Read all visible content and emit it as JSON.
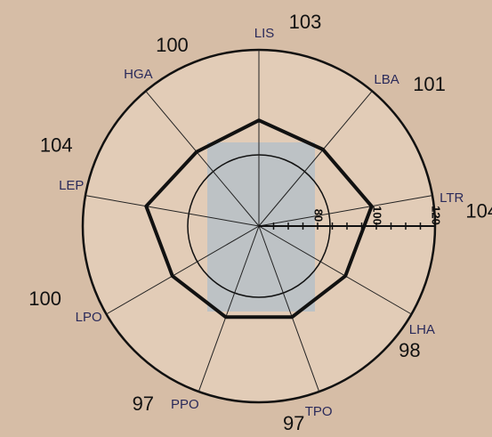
{
  "chart_data": {
    "type": "radar",
    "radial_range": [
      60,
      120
    ],
    "radial_ticks": [
      80,
      100,
      120
    ],
    "axes": [
      {
        "label": "LEP",
        "value": 104
      },
      {
        "label": "HGA",
        "value": 100
      },
      {
        "label": "LIS",
        "value": 103
      },
      {
        "label": "LBA",
        "value": 101
      },
      {
        "label": "LTR",
        "value": 104
      },
      {
        "label": "LHA",
        "value": 98
      },
      {
        "label": "TPO",
        "value": 97
      },
      {
        "label": "PPO",
        "value": 97
      },
      {
        "label": "LPO",
        "value": 100
      }
    ],
    "series": [
      {
        "values": [
          99,
          93,
          96,
          94,
          99,
          94,
          93,
          93,
          94
        ]
      }
    ],
    "reference_circle_value": 100,
    "colors": {
      "background": "#d6bda6",
      "plot_face": "#e2ccb7",
      "shaded_band": "#b9c1c6",
      "line": "#111111"
    }
  }
}
